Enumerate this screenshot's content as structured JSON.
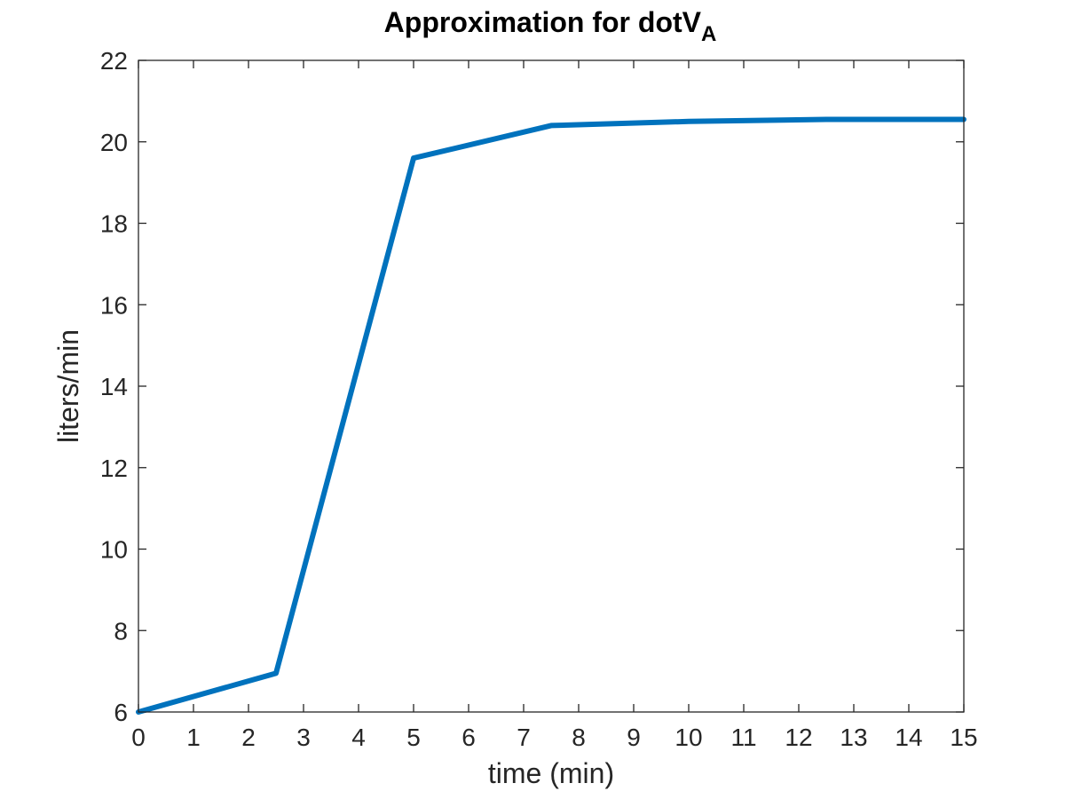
{
  "chart_data": {
    "type": "line",
    "title": "Approximation for dotV",
    "title_subscript": "A",
    "xlabel": "time (min)",
    "ylabel": "liters/min",
    "xlim": [
      0,
      15
    ],
    "ylim": [
      6,
      22
    ],
    "x_ticks": [
      "0",
      "1",
      "2",
      "3",
      "4",
      "5",
      "6",
      "7",
      "8",
      "9",
      "10",
      "11",
      "12",
      "13",
      "14",
      "15"
    ],
    "y_ticks": [
      "6",
      "8",
      "10",
      "12",
      "14",
      "16",
      "18",
      "20",
      "22"
    ],
    "grid": false,
    "box": true,
    "series": [
      {
        "color": "#0072BD",
        "x": [
          0,
          2.5,
          5,
          7.5,
          10,
          12.5,
          15
        ],
        "y": [
          6.0,
          6.95,
          19.6,
          20.4,
          20.5,
          20.55,
          20.55
        ]
      }
    ]
  }
}
